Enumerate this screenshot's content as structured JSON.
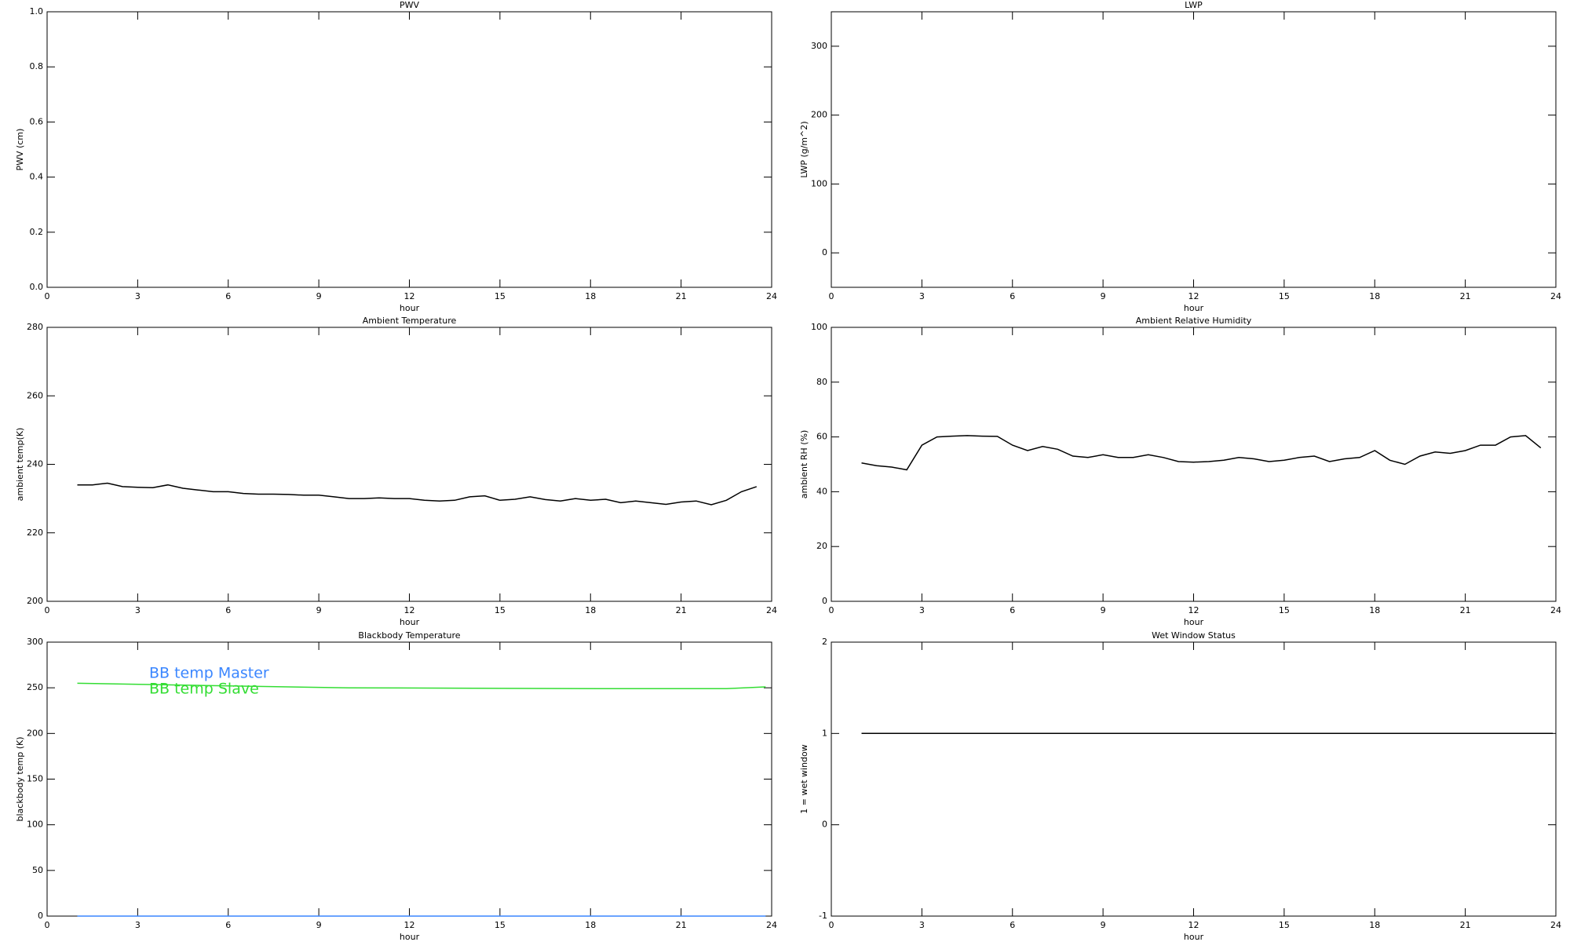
{
  "chart_data": [
    {
      "type": "line",
      "title": "PWV",
      "xlabel": "hour",
      "ylabel": "PWV (cm)",
      "xlim": [
        0,
        24
      ],
      "xticks": [
        0,
        3,
        6,
        9,
        12,
        15,
        18,
        21,
        24
      ],
      "ylim": [
        0,
        1
      ],
      "yticks": [
        {
          "value": 0,
          "label": "0.0"
        },
        {
          "value": 0.2,
          "label": "0.2"
        },
        {
          "value": 0.4,
          "label": "0.4"
        },
        {
          "value": 0.6,
          "label": "0.6"
        },
        {
          "value": 0.8,
          "label": "0.8"
        },
        {
          "value": 1,
          "label": "1.0"
        }
      ],
      "x": [],
      "series": []
    },
    {
      "type": "line",
      "title": "LWP",
      "xlabel": "hour",
      "ylabel": "LWP (g/m^2)",
      "xlim": [
        0,
        24
      ],
      "xticks": [
        0,
        3,
        6,
        9,
        12,
        15,
        18,
        21,
        24
      ],
      "ylim": [
        -50,
        350
      ],
      "yticks": [
        0,
        100,
        200,
        300
      ],
      "x": [],
      "series": []
    },
    {
      "type": "line",
      "title": "Ambient Temperature",
      "xlabel": "hour",
      "ylabel": "ambient temp(K)",
      "xlim": [
        0,
        24
      ],
      "xticks": [
        0,
        3,
        6,
        9,
        12,
        15,
        18,
        21,
        24
      ],
      "ylim": [
        200,
        280
      ],
      "yticks": [
        200,
        220,
        240,
        260,
        280
      ],
      "x": [
        1,
        1.5,
        2,
        2.5,
        3,
        3.5,
        4,
        4.5,
        5,
        5.5,
        6,
        6.5,
        7,
        7.5,
        8,
        8.5,
        9,
        9.5,
        10,
        10.5,
        11,
        11.5,
        12,
        12.5,
        13,
        13.5,
        14,
        14.5,
        15,
        15.5,
        16,
        16.5,
        17,
        17.5,
        18,
        18.5,
        19,
        19.5,
        20,
        20.5,
        21,
        21.5,
        22,
        22.5,
        23,
        23.5
      ],
      "series": [
        {
          "color": "#000000",
          "values": [
            234,
            234,
            234.5,
            233.5,
            233.3,
            233.2,
            234,
            233,
            232.5,
            232,
            232,
            231.5,
            231.3,
            231.3,
            231.2,
            231,
            231,
            230.5,
            230,
            230,
            230.2,
            230,
            230,
            229.5,
            229.3,
            229.5,
            230.5,
            230.8,
            229.5,
            229.8,
            230.5,
            229.7,
            229.3,
            230,
            229.5,
            229.8,
            228.8,
            229.3,
            228.8,
            228.3,
            229,
            229.3,
            228.2,
            229.5,
            232,
            233.5
          ]
        }
      ]
    },
    {
      "type": "line",
      "title": "Ambient Relative Humidity",
      "xlabel": "hour",
      "ylabel": "ambient RH (%)",
      "xlim": [
        0,
        24
      ],
      "xticks": [
        0,
        3,
        6,
        9,
        12,
        15,
        18,
        21,
        24
      ],
      "ylim": [
        0,
        100
      ],
      "yticks": [
        0,
        20,
        40,
        60,
        80,
        100
      ],
      "x": [
        1,
        1.5,
        2,
        2.5,
        3,
        3.5,
        4,
        4.5,
        5,
        5.5,
        6,
        6.5,
        7,
        7.5,
        8,
        8.5,
        9,
        9.5,
        10,
        10.5,
        11,
        11.5,
        12,
        12.5,
        13,
        13.5,
        14,
        14.5,
        15,
        15.5,
        16,
        16.5,
        17,
        17.5,
        18,
        18.5,
        19,
        19.5,
        20,
        20.5,
        21,
        21.5,
        22,
        22.5,
        23,
        23.5
      ],
      "series": [
        {
          "color": "#000000",
          "values": [
            50.5,
            49.5,
            49,
            48,
            57,
            60,
            60.3,
            60.5,
            60.3,
            60.2,
            57,
            55,
            56.5,
            55.5,
            53,
            52.5,
            53.5,
            52.5,
            52.5,
            53.5,
            52.5,
            51,
            50.8,
            51,
            51.5,
            52.5,
            52,
            51,
            51.5,
            52.5,
            53,
            51,
            52,
            52.5,
            55,
            51.5,
            50,
            53,
            54.5,
            54,
            55,
            57,
            57,
            60,
            60.5,
            56
          ]
        }
      ]
    },
    {
      "type": "line",
      "title": "Blackbody Temperature",
      "xlabel": "hour",
      "ylabel": "blackbody temp (K)",
      "xlim": [
        0,
        24
      ],
      "xticks": [
        0,
        3,
        6,
        9,
        12,
        15,
        18,
        21,
        24
      ],
      "ylim": [
        0,
        300
      ],
      "yticks": [
        0,
        50,
        100,
        150,
        200,
        250,
        300
      ],
      "legend": "upper left",
      "x": [
        1,
        6,
        10,
        18.5,
        22.5,
        23.8
      ],
      "series": [
        {
          "name": "BB temp Master",
          "color": "#3a86ff",
          "values": [
            0,
            0,
            0,
            0,
            0,
            0
          ]
        },
        {
          "name": "BB temp Slave",
          "color": "#33dd33",
          "values": [
            255,
            252,
            250,
            249,
            249,
            251
          ]
        }
      ]
    },
    {
      "type": "line",
      "title": "Wet Window Status",
      "xlabel": "hour",
      "ylabel": "1 = wet window",
      "xlim": [
        0,
        24
      ],
      "xticks": [
        0,
        3,
        6,
        9,
        12,
        15,
        18,
        21,
        24
      ],
      "ylim": [
        -1,
        2
      ],
      "yticks": [
        -1,
        0,
        1,
        2
      ],
      "x": [
        1,
        23.9
      ],
      "series": [
        {
          "color": "#000000",
          "values": [
            1,
            1
          ]
        }
      ]
    }
  ]
}
